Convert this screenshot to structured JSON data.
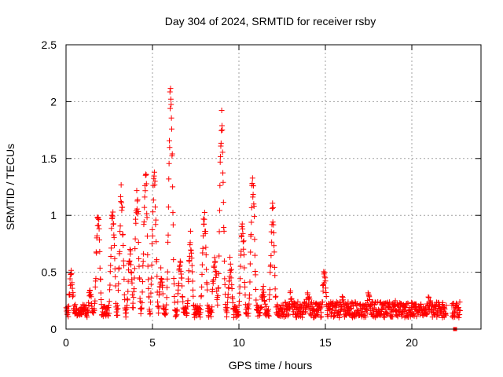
{
  "chart_data": {
    "type": "scatter",
    "title": "Day 304 of 2024, SRMTID for receiver rsby",
    "xlabel": "GPS time / hours",
    "ylabel": "SRMTID / TECUs",
    "xlim": [
      0,
      24
    ],
    "ylim": [
      0,
      2.5
    ],
    "x_ticks": [
      0,
      5,
      10,
      15,
      20
    ],
    "x_tick_labels": [
      "0",
      "5",
      "10",
      "15",
      "20"
    ],
    "y_ticks": [
      0,
      0.5,
      1,
      1.5,
      2,
      2.5
    ],
    "y_tick_labels": [
      "0",
      "0.5",
      "1",
      "1.5",
      "2",
      "2.5"
    ],
    "grid": true,
    "marker": "plus",
    "series_color": "#ff0000",
    "baseline": 0.17,
    "peaks": [
      {
        "t": 0.3,
        "h": 0.5
      },
      {
        "t": 1.4,
        "h": 0.35
      },
      {
        "t": 1.85,
        "h": 1.03
      },
      {
        "t": 2.7,
        "h": 1.1
      },
      {
        "t": 3.2,
        "h": 1.24
      },
      {
        "t": 3.7,
        "h": 0.7
      },
      {
        "t": 4.1,
        "h": 1.25
      },
      {
        "t": 4.6,
        "h": 1.43
      },
      {
        "t": 5.1,
        "h": 1.4
      },
      {
        "t": 5.5,
        "h": 0.5
      },
      {
        "t": 6.05,
        "h": 2.17
      },
      {
        "t": 6.6,
        "h": 0.6
      },
      {
        "t": 7.2,
        "h": 0.85
      },
      {
        "t": 8.0,
        "h": 1.06
      },
      {
        "t": 8.6,
        "h": 0.65
      },
      {
        "t": 9.0,
        "h": 1.91
      },
      {
        "t": 9.5,
        "h": 0.6
      },
      {
        "t": 10.2,
        "h": 0.95
      },
      {
        "t": 10.8,
        "h": 1.37
      },
      {
        "t": 11.4,
        "h": 0.35
      },
      {
        "t": 11.95,
        "h": 1.06
      },
      {
        "t": 13.0,
        "h": 0.28
      },
      {
        "t": 14.0,
        "h": 0.3
      },
      {
        "t": 14.95,
        "h": 0.51
      },
      {
        "t": 16.0,
        "h": 0.28
      },
      {
        "t": 17.5,
        "h": 0.27
      },
      {
        "t": 19.0,
        "h": 0.25
      },
      {
        "t": 21.0,
        "h": 0.24
      }
    ],
    "x_range": [
      0,
      22.8
    ],
    "gap": [
      22.0,
      22.3
    ],
    "outliers": [
      {
        "x": 22.5,
        "y": 0.0
      }
    ]
  }
}
